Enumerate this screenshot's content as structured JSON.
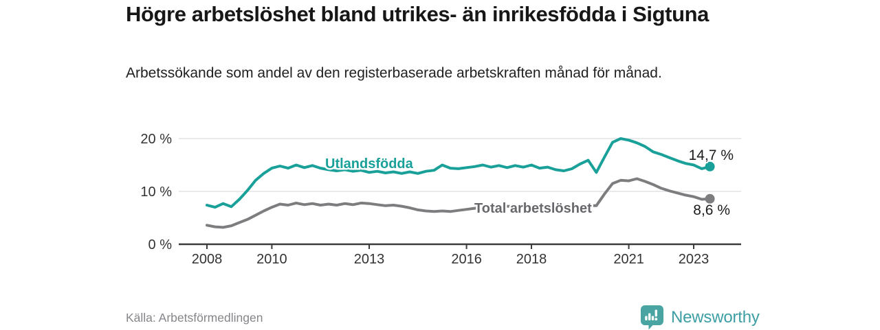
{
  "header": {
    "title": "Högre arbetslöshet bland utrikes- än inrikesfödda i Sigtuna",
    "subtitle": "Arbetssökande som andel av den registerbaserade arbetskraften månad för månad."
  },
  "footer": {
    "source": "Källa: Arbetsförmedlingen",
    "brand_name": "Newsworthy",
    "brand_color": "#3d9fa3",
    "logo_color": "#4aa5a2"
  },
  "chart_data": {
    "type": "line",
    "title": "Högre arbetslöshet bland utrikes- än inrikesfödda i Sigtuna",
    "subtitle": "Arbetssökande som andel av den registerbaserade arbetskraften månad för månad.",
    "xlabel": "",
    "ylabel": "",
    "unit": "%",
    "xlim": [
      2007.1,
      2024.5
    ],
    "ylim": [
      0,
      23
    ],
    "grid": "horizontal",
    "legend_position": "inline-labels",
    "x_ticks": [
      2008,
      2010,
      2013,
      2016,
      2018,
      2021,
      2023
    ],
    "y_ticks": [
      {
        "value": 0,
        "label": "0 %"
      },
      {
        "value": 10,
        "label": "10 %"
      },
      {
        "value": 20,
        "label": "20 %"
      }
    ],
    "x": [
      2008,
      2008.25,
      2008.5,
      2008.75,
      2009,
      2009.25,
      2009.5,
      2009.75,
      2010,
      2010.25,
      2010.5,
      2010.75,
      2011,
      2011.25,
      2011.5,
      2011.75,
      2012,
      2012.25,
      2012.5,
      2012.75,
      2013,
      2013.25,
      2013.5,
      2013.75,
      2014,
      2014.25,
      2014.5,
      2014.75,
      2015,
      2015.25,
      2015.5,
      2015.75,
      2016,
      2016.25,
      2016.5,
      2016.75,
      2017,
      2017.25,
      2017.5,
      2017.75,
      2018,
      2018.25,
      2018.5,
      2018.75,
      2019,
      2019.25,
      2019.5,
      2019.75,
      2020,
      2020.25,
      2020.5,
      2020.75,
      2021,
      2021.25,
      2021.5,
      2021.75,
      2022,
      2022.25,
      2022.5,
      2022.75,
      2023,
      2023.25,
      2023.5
    ],
    "series": [
      {
        "name": "Utlandsfödda",
        "color": "#18a099",
        "end_label": "14,7 %",
        "end_value": 14.7,
        "values": [
          7.4,
          7.0,
          7.7,
          7.1,
          8.5,
          10.2,
          12.1,
          13.4,
          14.4,
          14.8,
          14.4,
          15.0,
          14.5,
          14.9,
          14.4,
          14.1,
          13.9,
          14.1,
          13.8,
          14.0,
          13.6,
          13.8,
          13.5,
          13.7,
          13.4,
          13.7,
          13.4,
          13.8,
          14.0,
          15.0,
          14.4,
          14.3,
          14.5,
          14.7,
          15.0,
          14.6,
          14.9,
          14.5,
          14.9,
          14.6,
          15.0,
          14.4,
          14.6,
          14.1,
          13.9,
          14.3,
          15.2,
          15.9,
          13.6,
          16.5,
          19.3,
          20.0,
          19.7,
          19.2,
          18.5,
          17.5,
          17.0,
          16.4,
          15.8,
          15.3,
          15.0,
          14.3,
          14.7
        ]
      },
      {
        "name": "Total arbetslöshet",
        "color": "#7d7d80",
        "label_color": "#67676c",
        "end_label": "8,6 %",
        "end_value": 8.6,
        "values": [
          3.6,
          3.3,
          3.2,
          3.5,
          4.1,
          4.7,
          5.5,
          6.3,
          7.0,
          7.6,
          7.4,
          7.8,
          7.5,
          7.7,
          7.4,
          7.6,
          7.4,
          7.7,
          7.5,
          7.8,
          7.7,
          7.5,
          7.3,
          7.4,
          7.2,
          6.9,
          6.5,
          6.3,
          6.2,
          6.3,
          6.2,
          6.4,
          6.6,
          6.8,
          7.0,
          7.1,
          7.0,
          7.2,
          7.1,
          7.2,
          7.1,
          7.0,
          7.1,
          7.0,
          6.9,
          7.0,
          7.1,
          7.3,
          7.3,
          9.5,
          11.5,
          12.1,
          12.0,
          12.4,
          11.9,
          11.3,
          10.6,
          10.1,
          9.7,
          9.3,
          9.0,
          8.5,
          8.6
        ]
      }
    ]
  }
}
